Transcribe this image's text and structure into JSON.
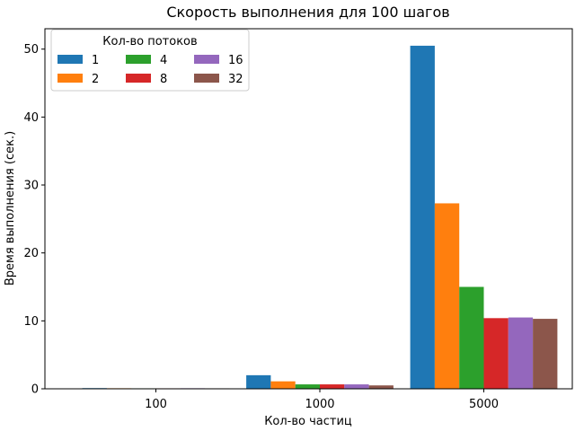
{
  "chart_data": {
    "type": "bar",
    "title": "Скорость выполнения для 100 шагов",
    "xlabel": "Кол-во частиц",
    "ylabel": "Время выполнения (сек.)",
    "categories": [
      "100",
      "1000",
      "5000"
    ],
    "ylim": [
      0,
      53
    ],
    "yticks": [
      0,
      10,
      20,
      30,
      40,
      50
    ],
    "grid": false,
    "legend": {
      "title": "Кол-во потоков",
      "placement": "top-left",
      "columns": 3
    },
    "series": [
      {
        "name": "1",
        "color": "#1f77b4",
        "values": [
          0.1,
          2.0,
          50.5
        ]
      },
      {
        "name": "2",
        "color": "#ff7f0e",
        "values": [
          0.08,
          1.1,
          27.3
        ]
      },
      {
        "name": "4",
        "color": "#2ca02c",
        "values": [
          0.07,
          0.65,
          15.0
        ]
      },
      {
        "name": "8",
        "color": "#d62728",
        "values": [
          0.07,
          0.65,
          10.4
        ]
      },
      {
        "name": "16",
        "color": "#9467bd",
        "values": [
          0.08,
          0.65,
          10.5
        ]
      },
      {
        "name": "32",
        "color": "#8c564b",
        "values": [
          0.07,
          0.5,
          10.3
        ]
      }
    ]
  }
}
